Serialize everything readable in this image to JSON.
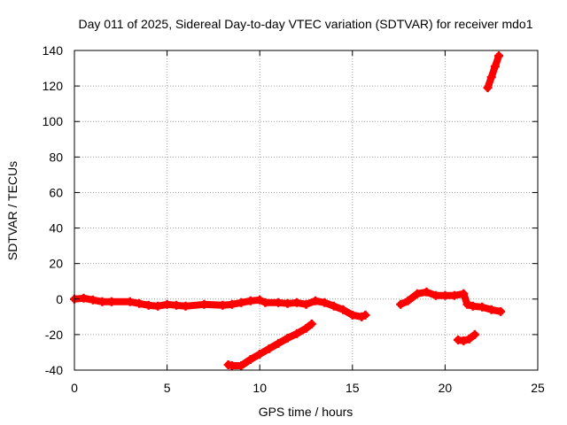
{
  "chart_data": {
    "type": "scatter",
    "title": "Day 011 of 2025, Sidereal Day-to-day VTEC variation (SDTVAR) for receiver mdo1",
    "xlabel": "GPS time / hours",
    "ylabel": "SDTVAR / TECUs",
    "xlim": [
      0,
      25
    ],
    "ylim": [
      -40,
      140
    ],
    "xticks": [
      "0",
      "5",
      "10",
      "15",
      "20",
      "25"
    ],
    "yticks": [
      "-40",
      "-20",
      "0",
      "20",
      "40",
      "60",
      "80",
      "100",
      "120",
      "140"
    ],
    "grid": true,
    "marker": "plus",
    "color": "#ff0000",
    "series": [
      {
        "name": "arc-1",
        "points": [
          [
            0,
            0
          ],
          [
            0.5,
            0.5
          ],
          [
            1,
            -0.5
          ],
          [
            1.5,
            -1.5
          ],
          [
            2,
            -1.5
          ],
          [
            3,
            -1.5
          ],
          [
            3.5,
            -2.5
          ],
          [
            4,
            -3.5
          ],
          [
            4.5,
            -4
          ],
          [
            5,
            -3
          ],
          [
            5.5,
            -3.5
          ],
          [
            6,
            -4
          ],
          [
            7,
            -3
          ],
          [
            8,
            -3.5
          ],
          [
            8.5,
            -3
          ],
          [
            9,
            -2
          ],
          [
            9.5,
            -1
          ],
          [
            10,
            -0.5
          ],
          [
            10.3,
            -2
          ],
          [
            11,
            -2
          ],
          [
            11.5,
            -2.5
          ],
          [
            12,
            -2
          ],
          [
            12.5,
            -3
          ],
          [
            13,
            -1
          ],
          [
            13.5,
            -2
          ],
          [
            14,
            -4
          ],
          [
            14.5,
            -6
          ],
          [
            15,
            -9
          ],
          [
            15.5,
            -10
          ],
          [
            15.7,
            -9
          ]
        ]
      },
      {
        "name": "arc-2",
        "points": [
          [
            8.3,
            -37
          ],
          [
            8.5,
            -37.5
          ],
          [
            9,
            -37.5
          ],
          [
            9.5,
            -34
          ],
          [
            10,
            -31
          ],
          [
            10.5,
            -28
          ],
          [
            11,
            -25
          ],
          [
            11.5,
            -22
          ],
          [
            12,
            -19.5
          ],
          [
            12.5,
            -16.5
          ],
          [
            12.8,
            -14
          ]
        ]
      },
      {
        "name": "arc-3",
        "points": [
          [
            17.6,
            -3
          ],
          [
            18,
            -1
          ],
          [
            18.5,
            3
          ],
          [
            19,
            4
          ],
          [
            19.5,
            2
          ],
          [
            20,
            2
          ],
          [
            20.5,
            2
          ],
          [
            21,
            3
          ],
          [
            21.2,
            -3
          ],
          [
            21.5,
            -4
          ],
          [
            22,
            -4.5
          ],
          [
            22.5,
            -6
          ],
          [
            23,
            -7
          ]
        ]
      },
      {
        "name": "arc-4",
        "points": [
          [
            20.7,
            -23
          ],
          [
            21,
            -23.5
          ],
          [
            21.3,
            -22.5
          ],
          [
            21.6,
            -20
          ]
        ]
      },
      {
        "name": "arc-5",
        "points": [
          [
            22.3,
            119
          ],
          [
            22.5,
            125
          ],
          [
            22.7,
            131
          ],
          [
            22.9,
            137
          ]
        ]
      }
    ]
  }
}
